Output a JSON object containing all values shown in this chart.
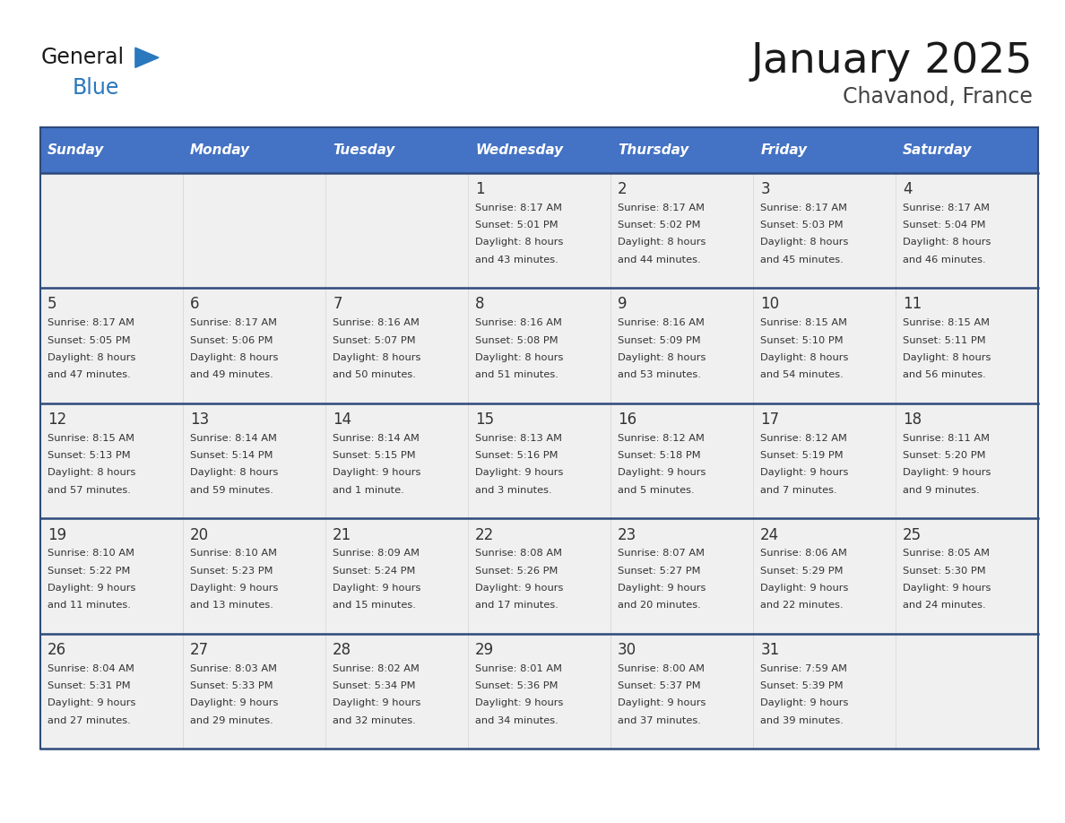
{
  "title": "January 2025",
  "subtitle": "Chavanod, France",
  "days_of_week": [
    "Sunday",
    "Monday",
    "Tuesday",
    "Wednesday",
    "Thursday",
    "Friday",
    "Saturday"
  ],
  "header_bg": "#4472C4",
  "header_text_color": "#FFFFFF",
  "cell_bg": "#F0F0F0",
  "cell_bg_white": "#FFFFFF",
  "cell_text_color": "#333333",
  "day_num_color": "#333333",
  "row_divider_color": "#2E4A7A",
  "outer_border_color": "#2E4A7A",
  "title_color": "#1A1A1A",
  "subtitle_color": "#444444",
  "logo_general_color": "#1A1A1A",
  "logo_blue_color": "#2A78BE",
  "calendar_data": [
    [
      null,
      null,
      null,
      {
        "day": 1,
        "sunrise": "8:17 AM",
        "sunset": "5:01 PM",
        "daylight": "8 hours",
        "daylight2": "and 43 minutes."
      },
      {
        "day": 2,
        "sunrise": "8:17 AM",
        "sunset": "5:02 PM",
        "daylight": "8 hours",
        "daylight2": "and 44 minutes."
      },
      {
        "day": 3,
        "sunrise": "8:17 AM",
        "sunset": "5:03 PM",
        "daylight": "8 hours",
        "daylight2": "and 45 minutes."
      },
      {
        "day": 4,
        "sunrise": "8:17 AM",
        "sunset": "5:04 PM",
        "daylight": "8 hours",
        "daylight2": "and 46 minutes."
      }
    ],
    [
      {
        "day": 5,
        "sunrise": "8:17 AM",
        "sunset": "5:05 PM",
        "daylight": "8 hours",
        "daylight2": "and 47 minutes."
      },
      {
        "day": 6,
        "sunrise": "8:17 AM",
        "sunset": "5:06 PM",
        "daylight": "8 hours",
        "daylight2": "and 49 minutes."
      },
      {
        "day": 7,
        "sunrise": "8:16 AM",
        "sunset": "5:07 PM",
        "daylight": "8 hours",
        "daylight2": "and 50 minutes."
      },
      {
        "day": 8,
        "sunrise": "8:16 AM",
        "sunset": "5:08 PM",
        "daylight": "8 hours",
        "daylight2": "and 51 minutes."
      },
      {
        "day": 9,
        "sunrise": "8:16 AM",
        "sunset": "5:09 PM",
        "daylight": "8 hours",
        "daylight2": "and 53 minutes."
      },
      {
        "day": 10,
        "sunrise": "8:15 AM",
        "sunset": "5:10 PM",
        "daylight": "8 hours",
        "daylight2": "and 54 minutes."
      },
      {
        "day": 11,
        "sunrise": "8:15 AM",
        "sunset": "5:11 PM",
        "daylight": "8 hours",
        "daylight2": "and 56 minutes."
      }
    ],
    [
      {
        "day": 12,
        "sunrise": "8:15 AM",
        "sunset": "5:13 PM",
        "daylight": "8 hours",
        "daylight2": "and 57 minutes."
      },
      {
        "day": 13,
        "sunrise": "8:14 AM",
        "sunset": "5:14 PM",
        "daylight": "8 hours",
        "daylight2": "and 59 minutes."
      },
      {
        "day": 14,
        "sunrise": "8:14 AM",
        "sunset": "5:15 PM",
        "daylight": "9 hours",
        "daylight2": "and 1 minute."
      },
      {
        "day": 15,
        "sunrise": "8:13 AM",
        "sunset": "5:16 PM",
        "daylight": "9 hours",
        "daylight2": "and 3 minutes."
      },
      {
        "day": 16,
        "sunrise": "8:12 AM",
        "sunset": "5:18 PM",
        "daylight": "9 hours",
        "daylight2": "and 5 minutes."
      },
      {
        "day": 17,
        "sunrise": "8:12 AM",
        "sunset": "5:19 PM",
        "daylight": "9 hours",
        "daylight2": "and 7 minutes."
      },
      {
        "day": 18,
        "sunrise": "8:11 AM",
        "sunset": "5:20 PM",
        "daylight": "9 hours",
        "daylight2": "and 9 minutes."
      }
    ],
    [
      {
        "day": 19,
        "sunrise": "8:10 AM",
        "sunset": "5:22 PM",
        "daylight": "9 hours",
        "daylight2": "and 11 minutes."
      },
      {
        "day": 20,
        "sunrise": "8:10 AM",
        "sunset": "5:23 PM",
        "daylight": "9 hours",
        "daylight2": "and 13 minutes."
      },
      {
        "day": 21,
        "sunrise": "8:09 AM",
        "sunset": "5:24 PM",
        "daylight": "9 hours",
        "daylight2": "and 15 minutes."
      },
      {
        "day": 22,
        "sunrise": "8:08 AM",
        "sunset": "5:26 PM",
        "daylight": "9 hours",
        "daylight2": "and 17 minutes."
      },
      {
        "day": 23,
        "sunrise": "8:07 AM",
        "sunset": "5:27 PM",
        "daylight": "9 hours",
        "daylight2": "and 20 minutes."
      },
      {
        "day": 24,
        "sunrise": "8:06 AM",
        "sunset": "5:29 PM",
        "daylight": "9 hours",
        "daylight2": "and 22 minutes."
      },
      {
        "day": 25,
        "sunrise": "8:05 AM",
        "sunset": "5:30 PM",
        "daylight": "9 hours",
        "daylight2": "and 24 minutes."
      }
    ],
    [
      {
        "day": 26,
        "sunrise": "8:04 AM",
        "sunset": "5:31 PM",
        "daylight": "9 hours",
        "daylight2": "and 27 minutes."
      },
      {
        "day": 27,
        "sunrise": "8:03 AM",
        "sunset": "5:33 PM",
        "daylight": "9 hours",
        "daylight2": "and 29 minutes."
      },
      {
        "day": 28,
        "sunrise": "8:02 AM",
        "sunset": "5:34 PM",
        "daylight": "9 hours",
        "daylight2": "and 32 minutes."
      },
      {
        "day": 29,
        "sunrise": "8:01 AM",
        "sunset": "5:36 PM",
        "daylight": "9 hours",
        "daylight2": "and 34 minutes."
      },
      {
        "day": 30,
        "sunrise": "8:00 AM",
        "sunset": "5:37 PM",
        "daylight": "9 hours",
        "daylight2": "and 37 minutes."
      },
      {
        "day": 31,
        "sunrise": "7:59 AM",
        "sunset": "5:39 PM",
        "daylight": "9 hours",
        "daylight2": "and 39 minutes."
      },
      null
    ]
  ]
}
